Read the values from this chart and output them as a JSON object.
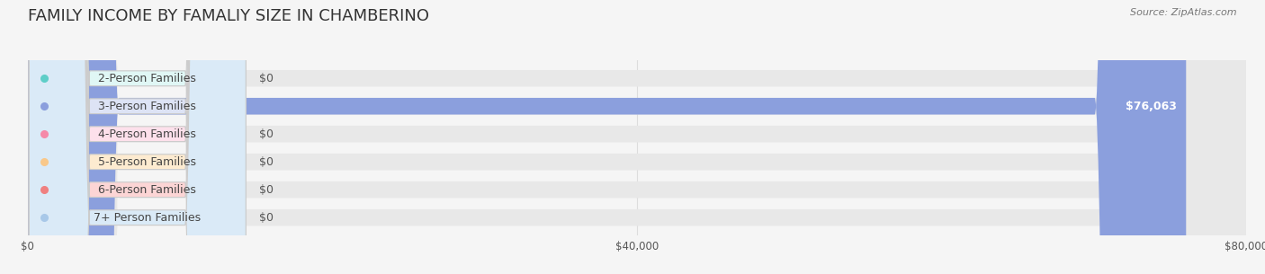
{
  "title": "FAMILY INCOME BY FAMALIY SIZE IN CHAMBERINO",
  "source": "Source: ZipAtlas.com",
  "categories": [
    "2-Person Families",
    "3-Person Families",
    "4-Person Families",
    "5-Person Families",
    "6-Person Families",
    "7+ Person Families"
  ],
  "values": [
    0,
    76063,
    0,
    0,
    0,
    0
  ],
  "bar_colors": [
    "#5ecec8",
    "#8b9fdd",
    "#f589a8",
    "#f9c88a",
    "#f08080",
    "#a8c8e8"
  ],
  "label_bg_colors": [
    "#e0f7f5",
    "#dde3f5",
    "#fde0eb",
    "#fdebd0",
    "#fcd5d5",
    "#daeaf7"
  ],
  "xlim": [
    0,
    80000
  ],
  "xticks": [
    0,
    40000,
    80000
  ],
  "xtick_labels": [
    "$0",
    "$40,000",
    "$80,000"
  ],
  "bar_height": 0.6,
  "background_color": "#f5f5f5",
  "plot_bg_color": "#f5f5f5",
  "title_fontsize": 13,
  "label_fontsize": 9,
  "value_label_color_zero": "#555555",
  "value_label_color_nonzero": "#ffffff",
  "grid_color": "#dddddd"
}
